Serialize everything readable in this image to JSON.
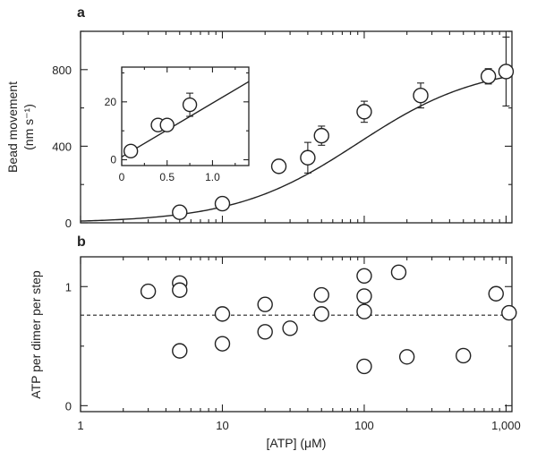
{
  "chart_data": [
    {
      "panel_label": "a",
      "type": "scatter",
      "ylabel_line1": "Bead movement",
      "ylabel_line2": "(nm s⁻¹)",
      "xscale": "log",
      "xlim": [
        1,
        1100
      ],
      "ylim": [
        0,
        1000
      ],
      "xticks": [
        1,
        10,
        100,
        1000
      ],
      "xtick_labels": [
        "1",
        "10",
        "100",
        "1,000"
      ],
      "yticks": [
        0,
        400,
        800
      ],
      "ytick_labels": [
        "0",
        "400",
        "800"
      ],
      "series": [
        {
          "marker": "open-circle",
          "points": [
            {
              "x": 5,
              "y": 55,
              "err": 0
            },
            {
              "x": 10,
              "y": 100,
              "err": 0
            },
            {
              "x": 25,
              "y": 295,
              "err": 0
            },
            {
              "x": 40,
              "y": 340,
              "err": 80
            },
            {
              "x": 50,
              "y": 455,
              "err": 50
            },
            {
              "x": 100,
              "y": 580,
              "err": 55
            },
            {
              "x": 250,
              "y": 665,
              "err": 65
            },
            {
              "x": 750,
              "y": 765,
              "err": 40
            },
            {
              "x": 1000,
              "y": 790,
              "err": 180
            }
          ]
        },
        {
          "type": "line",
          "description_fit": "hyperbolic fit",
          "vmax": 830,
          "km": 90
        }
      ],
      "inset": {
        "type": "scatter",
        "xlim": [
          0,
          1.4
        ],
        "ylim": [
          -2,
          32
        ],
        "xticks": [
          0,
          0.5,
          1.0
        ],
        "xtick_labels": [
          "0",
          "0.5",
          "1.0"
        ],
        "yticks": [
          0,
          20
        ],
        "ytick_labels": [
          "0",
          "20"
        ],
        "points": [
          {
            "x": 0.1,
            "y": 3,
            "err": 0
          },
          {
            "x": 0.4,
            "y": 12,
            "err": 0
          },
          {
            "x": 0.5,
            "y": 12,
            "err": 0
          },
          {
            "x": 0.75,
            "y": 19,
            "err": 4
          }
        ],
        "line": {
          "x0": 0,
          "y0": 1,
          "x1": 1.4,
          "y1": 27
        }
      }
    },
    {
      "panel_label": "b",
      "type": "scatter",
      "ylabel": "ATP per dimer per step",
      "xlabel": "[ATP] (μM)",
      "xscale": "log",
      "xlim": [
        1,
        1100
      ],
      "ylim": [
        -0.05,
        1.25
      ],
      "xticks": [
        1,
        10,
        100,
        1000
      ],
      "xtick_labels": [
        "1",
        "10",
        "100",
        "1,000"
      ],
      "yticks": [
        0,
        1
      ],
      "ytick_labels": [
        "0",
        "1"
      ],
      "reference_line_y": 0.76,
      "points": [
        {
          "x": 3,
          "y": 0.96
        },
        {
          "x": 5,
          "y": 1.03
        },
        {
          "x": 5,
          "y": 0.97
        },
        {
          "x": 5,
          "y": 0.46
        },
        {
          "x": 10,
          "y": 0.77
        },
        {
          "x": 10,
          "y": 0.52
        },
        {
          "x": 20,
          "y": 0.85
        },
        {
          "x": 20,
          "y": 0.62
        },
        {
          "x": 30,
          "y": 0.65
        },
        {
          "x": 50,
          "y": 0.93
        },
        {
          "x": 50,
          "y": 0.77
        },
        {
          "x": 100,
          "y": 1.09
        },
        {
          "x": 100,
          "y": 0.92
        },
        {
          "x": 100,
          "y": 0.79
        },
        {
          "x": 100,
          "y": 0.33
        },
        {
          "x": 175,
          "y": 1.12
        },
        {
          "x": 200,
          "y": 0.41
        },
        {
          "x": 500,
          "y": 0.42
        },
        {
          "x": 850,
          "y": 0.94
        },
        {
          "x": 1050,
          "y": 0.78
        }
      ]
    }
  ]
}
